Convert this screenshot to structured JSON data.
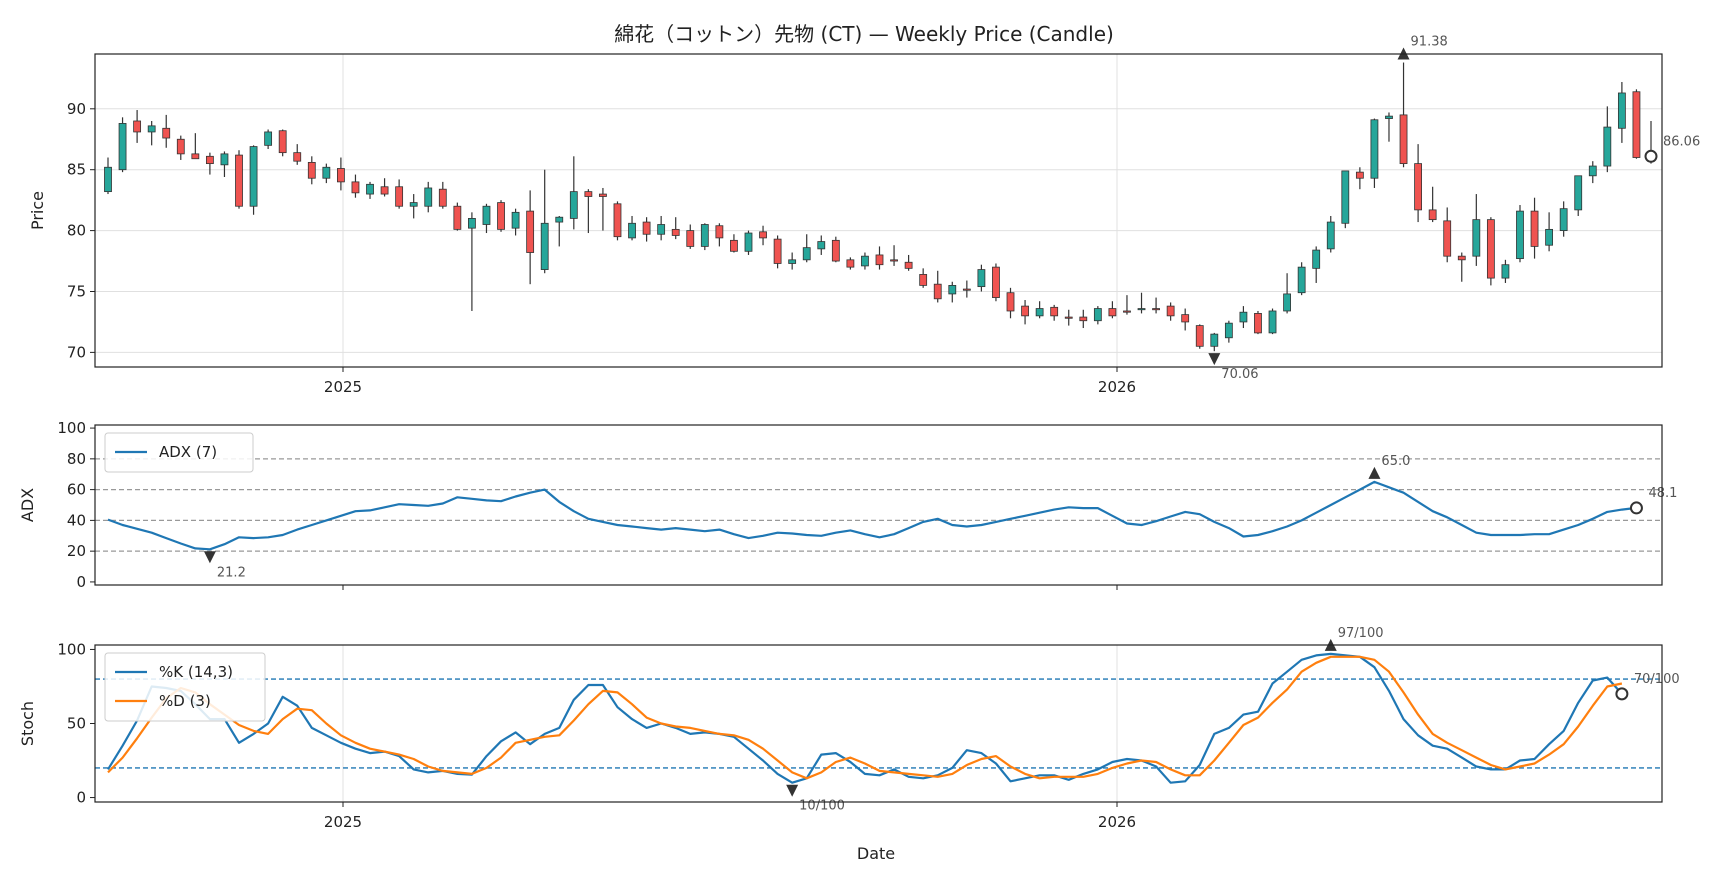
{
  "title": "綿花（コットン）先物 (CT) — Weekly Price (Candle)",
  "xlabel": "Date",
  "colors": {
    "up": "#26a69a",
    "down": "#ef5350",
    "adx": "#1f77b4",
    "k": "#1f77b4",
    "d": "#ff7f0e",
    "grid": "#e0e0e0",
    "ref": "#999999"
  },
  "chart_data": [
    {
      "type": "candlestick",
      "ylabel": "Price",
      "ylim": [
        68.8,
        94.5
      ],
      "yticks": [
        "70",
        "75",
        "80",
        "85",
        "90"
      ],
      "xticks": [
        "2025",
        "2026"
      ],
      "grid": true,
      "bars_per_week": 1,
      "ohlc": [
        [
          83.2,
          86.0,
          83.0,
          85.2
        ],
        [
          85.0,
          89.3,
          84.8,
          88.8
        ],
        [
          89.0,
          89.9,
          87.2,
          88.1
        ],
        [
          88.1,
          89.0,
          87.0,
          88.6
        ],
        [
          88.4,
          89.5,
          86.8,
          87.6
        ],
        [
          87.5,
          87.8,
          85.8,
          86.3
        ],
        [
          86.3,
          88.0,
          85.9,
          85.9
        ],
        [
          86.1,
          86.4,
          84.6,
          85.5
        ],
        [
          85.4,
          86.5,
          84.4,
          86.3
        ],
        [
          86.2,
          86.6,
          81.8,
          82.0
        ],
        [
          82.0,
          87.0,
          81.3,
          86.9
        ],
        [
          87.0,
          88.3,
          86.7,
          88.1
        ],
        [
          88.2,
          88.3,
          86.1,
          86.4
        ],
        [
          86.4,
          87.1,
          85.4,
          85.7
        ],
        [
          85.6,
          86.1,
          83.8,
          84.3
        ],
        [
          84.3,
          85.5,
          83.9,
          85.2
        ],
        [
          85.1,
          86.0,
          83.3,
          84.0
        ],
        [
          84.0,
          84.6,
          82.7,
          83.1
        ],
        [
          83.0,
          84.0,
          82.6,
          83.8
        ],
        [
          83.6,
          84.3,
          82.8,
          83.0
        ],
        [
          83.6,
          84.2,
          81.8,
          82.0
        ],
        [
          82.0,
          83.0,
          81.0,
          82.3
        ],
        [
          82.0,
          84.0,
          81.5,
          83.5
        ],
        [
          83.4,
          84.0,
          81.8,
          82.0
        ],
        [
          82.0,
          82.3,
          80.0,
          80.1
        ],
        [
          80.2,
          81.5,
          73.4,
          81.0
        ],
        [
          80.5,
          82.2,
          79.8,
          82.0
        ],
        [
          82.3,
          82.5,
          79.9,
          80.1
        ],
        [
          80.2,
          81.8,
          79.6,
          81.5
        ],
        [
          81.6,
          83.3,
          75.6,
          78.2
        ],
        [
          76.8,
          85.0,
          76.5,
          80.6
        ],
        [
          80.7,
          81.2,
          78.7,
          81.1
        ],
        [
          81.0,
          86.1,
          80.1,
          83.2
        ],
        [
          83.2,
          83.4,
          79.8,
          82.8
        ],
        [
          83.0,
          83.5,
          80.0,
          82.8
        ],
        [
          82.2,
          82.4,
          79.2,
          79.5
        ],
        [
          79.4,
          81.2,
          79.2,
          80.6
        ],
        [
          80.7,
          81.1,
          79.1,
          79.7
        ],
        [
          79.7,
          81.2,
          79.2,
          80.5
        ],
        [
          80.1,
          81.1,
          79.3,
          79.6
        ],
        [
          80.0,
          80.5,
          78.5,
          78.7
        ],
        [
          78.7,
          80.6,
          78.4,
          80.5
        ],
        [
          80.4,
          80.6,
          78.7,
          79.4
        ],
        [
          79.2,
          79.7,
          78.2,
          78.3
        ],
        [
          78.3,
          80.0,
          78.0,
          79.8
        ],
        [
          79.9,
          80.4,
          78.8,
          79.4
        ],
        [
          79.3,
          79.6,
          76.9,
          77.3
        ],
        [
          77.3,
          78.2,
          76.8,
          77.6
        ],
        [
          77.6,
          79.7,
          77.4,
          78.6
        ],
        [
          78.5,
          79.6,
          78.0,
          79.1
        ],
        [
          79.2,
          79.5,
          77.4,
          77.5
        ],
        [
          77.6,
          77.8,
          76.8,
          77.0
        ],
        [
          77.1,
          78.2,
          76.8,
          77.9
        ],
        [
          78.0,
          78.7,
          76.8,
          77.2
        ],
        [
          77.6,
          78.8,
          77.1,
          77.5
        ],
        [
          77.4,
          78.0,
          76.7,
          76.9
        ],
        [
          76.4,
          76.9,
          75.3,
          75.5
        ],
        [
          75.6,
          76.7,
          74.1,
          74.4
        ],
        [
          74.8,
          75.8,
          74.1,
          75.5
        ],
        [
          75.2,
          75.9,
          74.5,
          75.1
        ],
        [
          75.4,
          77.2,
          75.0,
          76.8
        ],
        [
          77.0,
          77.3,
          74.2,
          74.5
        ],
        [
          74.9,
          75.3,
          72.8,
          73.4
        ],
        [
          73.8,
          74.3,
          72.3,
          73.0
        ],
        [
          73.0,
          74.2,
          72.8,
          73.6
        ],
        [
          73.7,
          73.9,
          72.6,
          73.0
        ],
        [
          72.9,
          73.5,
          72.2,
          72.8
        ],
        [
          72.9,
          73.5,
          72.0,
          72.6
        ],
        [
          72.6,
          73.8,
          72.3,
          73.6
        ],
        [
          73.6,
          74.2,
          72.8,
          73.0
        ],
        [
          73.4,
          74.7,
          73.1,
          73.3
        ],
        [
          73.6,
          74.9,
          73.2,
          73.6
        ],
        [
          73.6,
          74.5,
          73.2,
          73.5
        ],
        [
          73.8,
          74.1,
          72.6,
          73.0
        ],
        [
          73.1,
          73.6,
          71.8,
          72.5
        ],
        [
          72.2,
          72.3,
          70.3,
          70.5
        ],
        [
          70.5,
          71.6,
          70.1,
          71.5
        ],
        [
          71.2,
          72.6,
          70.8,
          72.4
        ],
        [
          72.5,
          73.8,
          72.0,
          73.3
        ],
        [
          73.2,
          73.4,
          71.5,
          71.6
        ],
        [
          71.6,
          73.6,
          71.5,
          73.4
        ],
        [
          73.4,
          76.5,
          73.2,
          74.8
        ],
        [
          74.9,
          77.4,
          74.7,
          77.0
        ],
        [
          76.9,
          78.7,
          75.7,
          78.4
        ],
        [
          78.5,
          81.2,
          78.2,
          80.7
        ],
        [
          80.6,
          84.9,
          80.2,
          84.9
        ],
        [
          84.8,
          85.2,
          83.4,
          84.3
        ],
        [
          84.3,
          89.2,
          83.5,
          89.1
        ],
        [
          89.2,
          89.7,
          87.3,
          89.4
        ],
        [
          89.5,
          93.8,
          85.2,
          85.5
        ],
        [
          85.5,
          87.1,
          80.7,
          81.7
        ],
        [
          81.7,
          83.6,
          80.7,
          80.9
        ],
        [
          80.8,
          81.9,
          77.4,
          77.9
        ],
        [
          77.9,
          78.2,
          75.8,
          77.6
        ],
        [
          77.9,
          83.0,
          77.1,
          80.9
        ],
        [
          80.9,
          81.1,
          75.5,
          76.1
        ],
        [
          76.1,
          77.6,
          75.7,
          77.2
        ],
        [
          77.7,
          82.1,
          77.4,
          81.6
        ],
        [
          81.6,
          82.7,
          77.7,
          78.7
        ],
        [
          78.8,
          81.5,
          78.3,
          80.1
        ],
        [
          80.0,
          82.4,
          79.5,
          81.8
        ],
        [
          81.7,
          84.5,
          81.2,
          84.5
        ],
        [
          84.5,
          85.7,
          83.9,
          85.3
        ],
        [
          85.3,
          90.2,
          84.8,
          88.5
        ],
        [
          88.4,
          92.2,
          87.2,
          91.3
        ],
        [
          91.4,
          91.6,
          85.9,
          86.0
        ],
        [
          86.1,
          89.0,
          85.5,
          86.1
        ]
      ],
      "annotations": [
        {
          "label": "91.38",
          "marker": "max"
        },
        {
          "label": "70.06",
          "marker": "min"
        },
        {
          "label": "86.06",
          "marker": "last"
        }
      ]
    },
    {
      "type": "line",
      "ylabel": "ADX",
      "ylim": [
        -2,
        102
      ],
      "yticks": [
        "0",
        "20",
        "40",
        "60",
        "80",
        "100"
      ],
      "reference_lines": [
        20,
        40,
        60,
        80
      ],
      "series": [
        {
          "name": "ADX (7)",
          "values": [
            40.5,
            37.0,
            34.5,
            32.0,
            28.5,
            25.0,
            21.8,
            21.2,
            24.5,
            29.0,
            28.5,
            29.0,
            30.5,
            34.0,
            37.0,
            40.0,
            43.0,
            46.0,
            46.5,
            48.5,
            50.5,
            50.0,
            49.5,
            51.0,
            55.0,
            54.0,
            53.0,
            52.5,
            55.5,
            58.0,
            60.0,
            52.0,
            46.0,
            41.0,
            39.0,
            37.0,
            36.0,
            35.0,
            34.0,
            35.0,
            34.0,
            33.0,
            34.0,
            31.0,
            28.5,
            30.0,
            32.0,
            31.5,
            30.5,
            30.0,
            32.0,
            33.5,
            31.0,
            29.0,
            31.0,
            35.0,
            39.0,
            41.0,
            37.0,
            36.0,
            37.0,
            39.0,
            41.0,
            43.0,
            45.0,
            47.0,
            48.5,
            48.0,
            48.0,
            43.0,
            38.0,
            37.0,
            39.5,
            42.5,
            45.5,
            44.0,
            39.0,
            35.0,
            29.5,
            30.5,
            33.0,
            36.0,
            40.0,
            45.0,
            50.0,
            55.0,
            60.0,
            65.0,
            61.5,
            58.0,
            52.0,
            46.0,
            42.0,
            37.0,
            32.0,
            30.5,
            30.5,
            30.5,
            31.0,
            31.0,
            34.0,
            37.0,
            41.0,
            45.5,
            47.0,
            48.1
          ]
        }
      ],
      "annotations": [
        {
          "label": "21.2",
          "marker": "min"
        },
        {
          "label": "65.0",
          "marker": "max"
        },
        {
          "label": "48.1",
          "marker": "last"
        }
      ]
    },
    {
      "type": "line",
      "ylabel": "Stoch",
      "ylim": [
        -3,
        103
      ],
      "yticks": [
        "0",
        "50",
        "100"
      ],
      "xticks": [
        "2025",
        "2026"
      ],
      "reference_lines": [
        20,
        80
      ],
      "series": [
        {
          "name": "%K (14,3)",
          "values": [
            19.0,
            35.0,
            52.0,
            75.0,
            74.0,
            72.0,
            63.0,
            53.0,
            53.0,
            37.0,
            43.0,
            50.0,
            68.0,
            62.0,
            47.0,
            42.0,
            37.0,
            33.0,
            30.0,
            31.0,
            28.0,
            19.0,
            17.0,
            18.0,
            16.0,
            15.5,
            28.0,
            38.0,
            44.0,
            36.0,
            43.0,
            47.0,
            66.0,
            76.0,
            76.0,
            61.0,
            53.0,
            47.0,
            50.0,
            47.0,
            43.0,
            44.0,
            43.0,
            41.0,
            33.0,
            25.0,
            16.0,
            10.0,
            13.0,
            29.0,
            30.0,
            24.0,
            16.0,
            15.0,
            19.0,
            14.0,
            13.0,
            15.0,
            20.0,
            32.0,
            30.0,
            23.0,
            11.0,
            13.0,
            15.0,
            15.0,
            12.0,
            16.0,
            19.0,
            24.0,
            26.0,
            25.0,
            21.0,
            10.0,
            11.0,
            22.0,
            43.0,
            47.0,
            56.0,
            58.0,
            77.0,
            85.0,
            93.0,
            96.0,
            97.0,
            96.0,
            95.0,
            88.0,
            72.0,
            53.0,
            42.0,
            35.0,
            33.0,
            27.0,
            21.0,
            19.0,
            19.0,
            25.0,
            26.0,
            36.0,
            45.0,
            64.0,
            79.0,
            81.0,
            70.0
          ]
        },
        {
          "name": "%D (3)",
          "values": [
            17.0,
            27.0,
            40.0,
            54.0,
            67.0,
            74.0,
            71.0,
            63.0,
            56.0,
            49.0,
            45.0,
            43.0,
            53.0,
            60.0,
            59.0,
            50.0,
            42.0,
            37.0,
            33.0,
            31.0,
            29.0,
            26.0,
            21.0,
            18.0,
            17.0,
            16.0,
            20.0,
            27.0,
            37.0,
            39.0,
            41.0,
            42.0,
            52.0,
            63.0,
            72.0,
            71.0,
            63.0,
            54.0,
            50.0,
            48.0,
            47.0,
            45.0,
            43.0,
            42.0,
            39.0,
            33.0,
            25.0,
            17.0,
            13.0,
            17.0,
            24.0,
            27.0,
            23.0,
            18.0,
            17.0,
            16.0,
            15.0,
            14.0,
            16.0,
            22.0,
            26.0,
            28.0,
            21.0,
            16.0,
            13.0,
            14.0,
            14.0,
            14.0,
            16.0,
            20.0,
            23.0,
            25.0,
            24.0,
            19.0,
            15.0,
            15.0,
            25.0,
            37.0,
            49.0,
            54.0,
            64.0,
            73.0,
            85.0,
            91.0,
            95.0,
            95.0,
            95.0,
            93.0,
            85.0,
            71.0,
            56.0,
            43.0,
            37.0,
            32.0,
            27.0,
            22.0,
            19.0,
            21.0,
            23.0,
            29.0,
            36.0,
            48.0,
            62.0,
            75.0,
            77.0
          ]
        }
      ],
      "annotations": [
        {
          "label": "97/100",
          "marker": "max"
        },
        {
          "label": "10/100",
          "marker": "min"
        },
        {
          "label": "70/100",
          "marker": "last"
        }
      ]
    }
  ]
}
